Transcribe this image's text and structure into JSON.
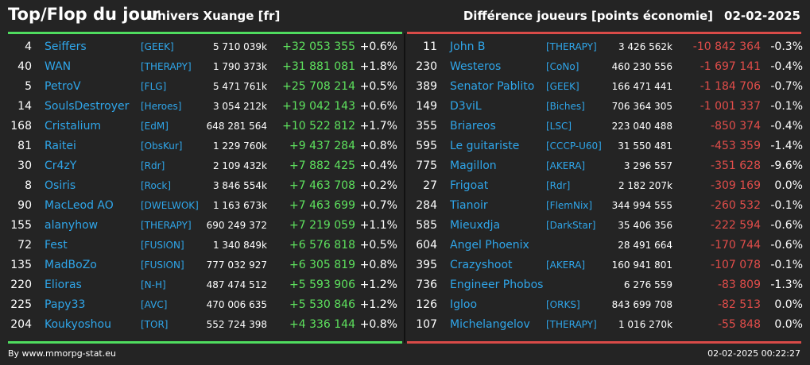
{
  "header": {
    "title": "Top/Flop du jour",
    "universe": "Univers Xuange [fr]",
    "metric": "Différence joueurs [points économie]",
    "date": "02-02-2025"
  },
  "colors": {
    "positive": "#5ee25e",
    "negative": "#e14d4a",
    "link": "#2fa6ea",
    "background": "#242424"
  },
  "top": [
    {
      "rank": "4",
      "name": "Seiffers",
      "alliance": "[GEEK]",
      "points": "5 710 039k",
      "diff": "+32 053 355",
      "pct": "+0.6%"
    },
    {
      "rank": "40",
      "name": "WAN",
      "alliance": "[THERAPY]",
      "points": "1 790 373k",
      "diff": "+31 881 081",
      "pct": "+1.8%"
    },
    {
      "rank": "5",
      "name": "PetroV",
      "alliance": "[FLG]",
      "points": "5 471 761k",
      "diff": "+25 708 214",
      "pct": "+0.5%"
    },
    {
      "rank": "14",
      "name": "SoulsDestroyer",
      "alliance": "[Heroes]",
      "points": "3 054 212k",
      "diff": "+19 042 143",
      "pct": "+0.6%"
    },
    {
      "rank": "168",
      "name": "Cristalium",
      "alliance": "[EdM]",
      "points": "648 281 564",
      "diff": "+10 522 812",
      "pct": "+1.7%"
    },
    {
      "rank": "81",
      "name": "Raitei",
      "alliance": "[ObsKur]",
      "points": "1 229 760k",
      "diff": "+9 437 284",
      "pct": "+0.8%"
    },
    {
      "rank": "30",
      "name": "Cr4zY",
      "alliance": "[Rdr]",
      "points": "2 109 432k",
      "diff": "+7 882 425",
      "pct": "+0.4%"
    },
    {
      "rank": "8",
      "name": "Osiris",
      "alliance": "[Rock]",
      "points": "3 846 554k",
      "diff": "+7 463 708",
      "pct": "+0.2%"
    },
    {
      "rank": "90",
      "name": "MacLeod AO",
      "alliance": "[DWELWOK]",
      "points": "1 163 673k",
      "diff": "+7 463 699",
      "pct": "+0.7%"
    },
    {
      "rank": "155",
      "name": "alanyhow",
      "alliance": "[THERAPY]",
      "points": "690 249 372",
      "diff": "+7 219 059",
      "pct": "+1.1%"
    },
    {
      "rank": "72",
      "name": "Fest",
      "alliance": "[FUSION]",
      "points": "1 340 849k",
      "diff": "+6 576 818",
      "pct": "+0.5%"
    },
    {
      "rank": "135",
      "name": "MadBoZo",
      "alliance": "[FUSION]",
      "points": "777 032 927",
      "diff": "+6 305 819",
      "pct": "+0.8%"
    },
    {
      "rank": "220",
      "name": "Elioras",
      "alliance": "[N-H]",
      "points": "487 474 512",
      "diff": "+5 593 906",
      "pct": "+1.2%"
    },
    {
      "rank": "225",
      "name": "Papy33",
      "alliance": "[AVC]",
      "points": "470 006 635",
      "diff": "+5 530 846",
      "pct": "+1.2%"
    },
    {
      "rank": "204",
      "name": "Koukyoshou",
      "alliance": "[TOR]",
      "points": "552 724 398",
      "diff": "+4 336 144",
      "pct": "+0.8%"
    }
  ],
  "flop": [
    {
      "rank": "11",
      "name": "John B",
      "alliance": "[THERAPY]",
      "points": "3 426 562k",
      "diff": "-10 842 364",
      "pct": "-0.3%"
    },
    {
      "rank": "230",
      "name": "Westeros",
      "alliance": "[CoNo]",
      "points": "460 230 556",
      "diff": "-1 697 141",
      "pct": "-0.4%"
    },
    {
      "rank": "389",
      "name": "Senator Pablito",
      "alliance": "[GEEK]",
      "points": "166 471 441",
      "diff": "-1 184 706",
      "pct": "-0.7%"
    },
    {
      "rank": "149",
      "name": "D3viL",
      "alliance": "[Biches]",
      "points": "706 364 305",
      "diff": "-1 001 337",
      "pct": "-0.1%"
    },
    {
      "rank": "355",
      "name": "Briareos",
      "alliance": "[LSC]",
      "points": "223 040 488",
      "diff": "-850 374",
      "pct": "-0.4%"
    },
    {
      "rank": "595",
      "name": "Le guitariste",
      "alliance": "[CCCP-U60]",
      "points": "31 550 481",
      "diff": "-453 359",
      "pct": "-1.4%"
    },
    {
      "rank": "775",
      "name": "Magillon",
      "alliance": "[AKERA]",
      "points": "3 296 557",
      "diff": "-351 628",
      "pct": "-9.6%"
    },
    {
      "rank": "27",
      "name": "Frigoat",
      "alliance": "[Rdr]",
      "points": "2 182 207k",
      "diff": "-309 169",
      "pct": "0.0%"
    },
    {
      "rank": "284",
      "name": "Tianoir",
      "alliance": "[FlemNix]",
      "points": "344 994 555",
      "diff": "-260 532",
      "pct": "-0.1%"
    },
    {
      "rank": "585",
      "name": "Mieuxdja",
      "alliance": "[DarkStar]",
      "points": "35 406 356",
      "diff": "-222 594",
      "pct": "-0.6%"
    },
    {
      "rank": "604",
      "name": "Angel Phoenix",
      "alliance": "",
      "points": "28 491 664",
      "diff": "-170 744",
      "pct": "-0.6%"
    },
    {
      "rank": "395",
      "name": "Crazyshoot",
      "alliance": "[AKERA]",
      "points": "160 941 801",
      "diff": "-107 078",
      "pct": "-0.1%"
    },
    {
      "rank": "736",
      "name": "Engineer Phobos",
      "alliance": "",
      "points": "6 276 559",
      "diff": "-83 809",
      "pct": "-1.3%"
    },
    {
      "rank": "126",
      "name": "Igloo",
      "alliance": "[ORKS]",
      "points": "843 699 708",
      "diff": "-82 513",
      "pct": "0.0%"
    },
    {
      "rank": "107",
      "name": "Michelangelov",
      "alliance": "[THERAPY]",
      "points": "1 016 270k",
      "diff": "-55 848",
      "pct": "0.0%"
    }
  ],
  "footer": {
    "source": "By www.mmorpg-stat.eu",
    "timestamp": "02-02-2025 00:22:27"
  }
}
